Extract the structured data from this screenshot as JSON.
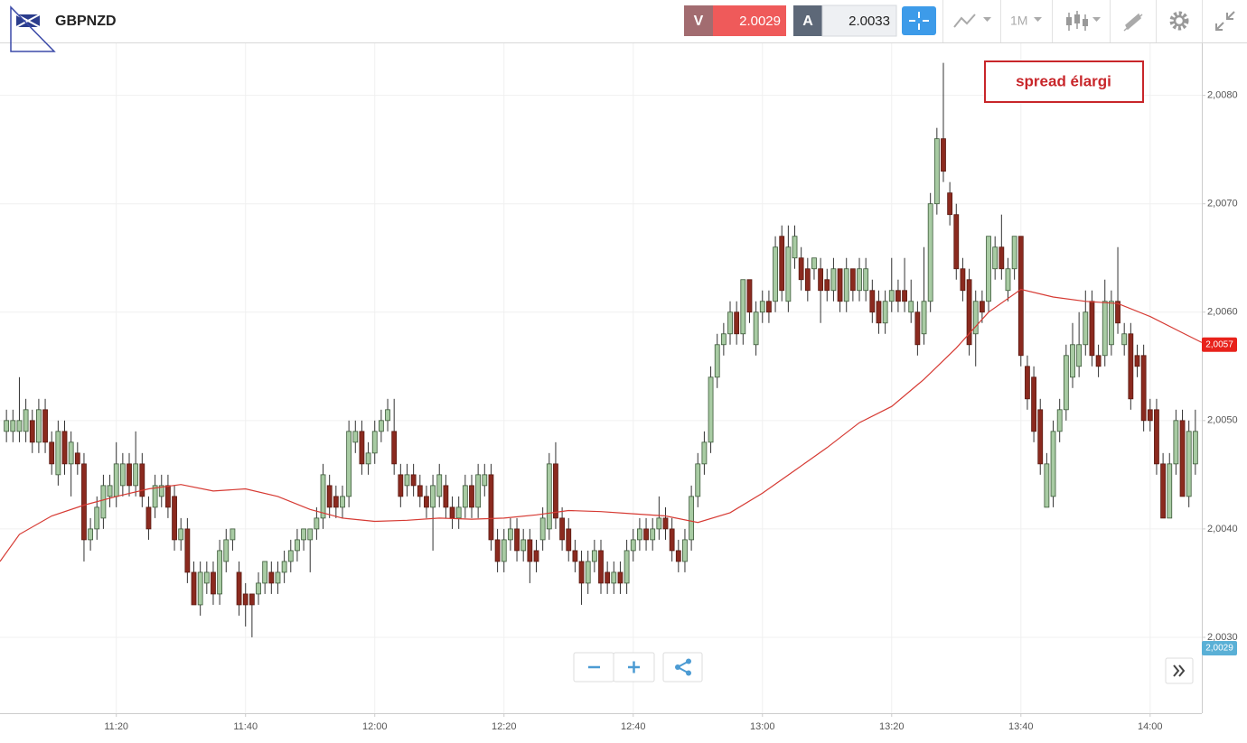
{
  "header": {
    "symbol": "GBPNZD",
    "sell_label": "V",
    "sell_price": "2.0029",
    "buy_label": "A",
    "buy_price": "2.0033",
    "timeframe": "1M"
  },
  "chart_data": {
    "type": "candlestick",
    "annotation": "spread élargi",
    "up_color": "#a8cba3",
    "down_color": "#8b2a1f",
    "grid": true,
    "xlim": [
      "11:02",
      "14:08"
    ],
    "xticks": [
      "11:20",
      "11:40",
      "12:00",
      "12:20",
      "12:40",
      "13:00",
      "13:20",
      "13:40",
      "14:00"
    ],
    "ylim": [
      2.0023,
      2.00848
    ],
    "yticks": [
      {
        "value": 2.003,
        "label": "2,0030"
      },
      {
        "value": 2.004,
        "label": "2,0040"
      },
      {
        "value": 2.005,
        "label": "2,0050"
      },
      {
        "value": 2.006,
        "label": "2,0060"
      },
      {
        "value": 2.007,
        "label": "2,0070"
      },
      {
        "value": 2.008,
        "label": "2,0080"
      }
    ],
    "price_labels": [
      {
        "value": 2.0057,
        "label": "2,0057",
        "color": "#e8221b"
      },
      {
        "value": 2.0029,
        "label": "2,0029",
        "color": "#5ab0d6"
      }
    ],
    "x": [
      "11:03",
      "11:04",
      "11:05",
      "11:06",
      "11:07",
      "11:08",
      "11:09",
      "11:10",
      "11:11",
      "11:12",
      "11:13",
      "11:14",
      "11:15",
      "11:16",
      "11:17",
      "11:18",
      "11:19",
      "11:20",
      "11:21",
      "11:22",
      "11:23",
      "11:24",
      "11:25",
      "11:26",
      "11:27",
      "11:28",
      "11:29",
      "11:30",
      "11:31",
      "11:32",
      "11:33",
      "11:34",
      "11:35",
      "11:36",
      "11:37",
      "11:38",
      "11:39",
      "11:40",
      "11:41",
      "11:42",
      "11:43",
      "11:44",
      "11:45",
      "11:46",
      "11:47",
      "11:48",
      "11:49",
      "11:50",
      "11:51",
      "11:52",
      "11:53",
      "11:54",
      "11:55",
      "11:56",
      "11:57",
      "11:58",
      "11:59",
      "12:00",
      "12:01",
      "12:02",
      "12:03",
      "12:04",
      "12:05",
      "12:06",
      "12:07",
      "12:08",
      "12:09",
      "12:10",
      "12:11",
      "12:12",
      "12:13",
      "12:14",
      "12:15",
      "12:16",
      "12:17",
      "12:18",
      "12:19",
      "12:20",
      "12:21",
      "12:22",
      "12:23",
      "12:24",
      "12:25",
      "12:26",
      "12:27",
      "12:28",
      "12:29",
      "12:30",
      "12:31",
      "12:32",
      "12:33",
      "12:34",
      "12:35",
      "12:36",
      "12:37",
      "12:38",
      "12:39",
      "12:40",
      "12:41",
      "12:42",
      "12:43",
      "12:44",
      "12:45",
      "12:46",
      "12:47",
      "12:48",
      "12:49",
      "12:50",
      "12:51",
      "12:52",
      "12:53",
      "12:54",
      "12:55",
      "12:56",
      "12:57",
      "12:58",
      "12:59",
      "13:00",
      "13:01",
      "13:02",
      "13:03",
      "13:04",
      "13:05",
      "13:06",
      "13:07",
      "13:08",
      "13:09",
      "13:10",
      "13:11",
      "13:12",
      "13:13",
      "13:14",
      "13:15",
      "13:16",
      "13:17",
      "13:18",
      "13:19",
      "13:20",
      "13:21",
      "13:22",
      "13:23",
      "13:24",
      "13:25",
      "13:26",
      "13:27",
      "13:28",
      "13:29",
      "13:30",
      "13:31",
      "13:32",
      "13:33",
      "13:34",
      "13:35",
      "13:36",
      "13:37",
      "13:38",
      "13:39",
      "13:40",
      "13:41",
      "13:42",
      "13:43",
      "13:44",
      "13:45",
      "13:46",
      "13:47",
      "13:48",
      "13:49",
      "13:50",
      "13:51",
      "13:52",
      "13:53",
      "13:54",
      "13:55",
      "13:56",
      "13:57",
      "13:58",
      "13:59",
      "14:00",
      "14:01",
      "14:02",
      "14:03",
      "14:04",
      "14:05",
      "14:06",
      "14:07"
    ],
    "open": [
      2.0049,
      2.0049,
      2.0049,
      2.0049,
      2.005,
      2.0048,
      2.0051,
      2.0048,
      2.0045,
      2.0049,
      2.0046,
      2.0047,
      2.0046,
      2.0039,
      2.004,
      2.0041,
      2.0043,
      2.0043,
      2.0044,
      2.0046,
      2.0044,
      2.0046,
      2.0042,
      2.0042,
      2.0043,
      2.0044,
      2.0043,
      2.0039,
      2.004,
      2.0036,
      2.0033,
      2.0035,
      2.0036,
      2.0034,
      2.0037,
      2.0039,
      2.0036,
      2.0034,
      2.0034,
      2.0034,
      2.0035,
      2.0036,
      2.0035,
      2.0036,
      2.0037,
      2.0038,
      2.0039,
      2.0039,
      2.004,
      2.0041,
      2.0044,
      2.0043,
      2.0042,
      2.0043,
      2.0048,
      2.0049,
      2.0046,
      2.0047,
      2.0049,
      2.005,
      2.0049,
      2.0045,
      2.0044,
      2.0045,
      2.0044,
      2.0043,
      2.0042,
      2.0043,
      2.0044,
      2.0042,
      2.0041,
      2.0042,
      2.0044,
      2.0042,
      2.0044,
      2.0045,
      2.0039,
      2.0037,
      2.0039,
      2.004,
      2.0038,
      2.0039,
      2.0038,
      2.0039,
      2.004,
      2.0046,
      2.0041,
      2.004,
      2.0038,
      2.0037,
      2.0035,
      2.0037,
      2.0038,
      2.0036,
      2.0035,
      2.0036,
      2.0035,
      2.0038,
      2.0039,
      2.004,
      2.0039,
      2.004,
      2.0041,
      2.004,
      2.0038,
      2.0037,
      2.0039,
      2.0043,
      2.0046,
      2.0048,
      2.0054,
      2.0057,
      2.0058,
      2.006,
      2.0058,
      2.0063,
      2.0057,
      2.006,
      2.0061,
      2.0061,
      2.0067,
      2.0061,
      2.0065,
      2.0065,
      2.0064,
      2.0064,
      2.0064,
      2.0063,
      2.0062,
      2.0064,
      2.0061,
      2.0064,
      2.0062,
      2.0062,
      2.0062,
      2.0061,
      2.0059,
      2.0061,
      2.0062,
      2.0062,
      2.006,
      2.006,
      2.0058,
      2.0061,
      2.007,
      2.0076,
      2.0071,
      2.0069,
      2.0064,
      2.0063,
      2.0058,
      2.0061,
      2.0061,
      2.0064,
      2.0066,
      2.0062,
      2.0064,
      2.0067,
      2.0055,
      2.0054,
      2.0051,
      2.0042,
      2.0043,
      2.0049,
      2.0051,
      2.0054,
      2.0055,
      2.0057,
      2.0061,
      2.0056,
      2.0056,
      2.0057,
      2.0061,
      2.0057,
      2.0058,
      2.0056,
      2.0056,
      2.0051,
      2.0051,
      2.0046,
      2.0041,
      2.0046,
      2.005,
      2.0043,
      2.0046
    ],
    "high": [
      2.0051,
      2.0051,
      2.0054,
      2.0052,
      2.0051,
      2.0052,
      2.0052,
      2.0049,
      2.005,
      2.005,
      2.0049,
      2.0048,
      2.0047,
      2.0041,
      2.0043,
      2.0045,
      2.0045,
      2.0048,
      2.0047,
      2.0047,
      2.0049,
      2.0047,
      2.0043,
      2.0045,
      2.0045,
      2.0045,
      2.0044,
      2.0041,
      2.0041,
      2.0037,
      2.0037,
      2.0037,
      2.0037,
      2.0039,
      2.004,
      2.004,
      2.0037,
      2.0035,
      2.0034,
      2.0036,
      2.0037,
      2.0037,
      2.0037,
      2.0038,
      2.0039,
      2.004,
      2.004,
      2.004,
      2.0042,
      2.0046,
      2.0045,
      2.0044,
      2.0044,
      2.005,
      2.005,
      2.005,
      2.0048,
      2.005,
      2.0051,
      2.0052,
      2.0052,
      2.0046,
      2.0046,
      2.0046,
      2.0045,
      2.0044,
      2.0045,
      2.0046,
      2.0045,
      2.0043,
      2.0043,
      2.0045,
      2.0045,
      2.0046,
      2.0046,
      2.0046,
      2.004,
      2.004,
      2.0041,
      2.0041,
      2.004,
      2.004,
      2.0039,
      2.0042,
      2.0047,
      2.0048,
      2.0042,
      2.0041,
      2.0039,
      2.0038,
      2.0038,
      2.0039,
      2.0039,
      2.0037,
      2.0037,
      2.0037,
      2.0039,
      2.004,
      2.0041,
      2.0041,
      2.0041,
      2.0043,
      2.0042,
      2.0041,
      2.0039,
      2.004,
      2.0044,
      2.0047,
      2.0049,
      2.0055,
      2.0058,
      2.0059,
      2.0061,
      2.0061,
      2.0063,
      2.0063,
      2.0061,
      2.0062,
      2.0062,
      2.0067,
      2.0068,
      2.0068,
      2.0068,
      2.0066,
      2.0065,
      2.0065,
      2.0065,
      2.0064,
      2.0065,
      2.0064,
      2.0065,
      2.0064,
      2.0065,
      2.0065,
      2.0063,
      2.0062,
      2.0062,
      2.0065,
      2.0063,
      2.0065,
      2.0063,
      2.0061,
      2.0066,
      2.0071,
      2.0077,
      2.0083,
      2.0072,
      2.007,
      2.0065,
      2.0064,
      2.0062,
      2.0062,
      2.0067,
      2.0067,
      2.0069,
      2.0065,
      2.0067,
      2.0067,
      2.0056,
      2.0055,
      2.0052,
      2.0047,
      2.005,
      2.0052,
      2.0057,
      2.0059,
      2.006,
      2.0062,
      2.0062,
      2.0057,
      2.0063,
      2.0062,
      2.0066,
      2.0059,
      2.0059,
      2.0057,
      2.0057,
      2.0052,
      2.0052,
      2.0047,
      2.0047,
      2.0051,
      2.0051,
      2.005,
      2.0051
    ],
    "low": [
      2.0048,
      2.0048,
      2.0048,
      2.0048,
      2.0047,
      2.0047,
      2.0047,
      2.0045,
      2.0044,
      2.0045,
      2.0043,
      2.0045,
      2.0037,
      2.0038,
      2.0039,
      2.004,
      2.0042,
      2.0042,
      2.0043,
      2.0043,
      2.0043,
      2.0042,
      2.0039,
      2.0041,
      2.0042,
      2.0041,
      2.0038,
      2.0038,
      2.0035,
      2.0033,
      2.0032,
      2.0034,
      2.0033,
      2.0033,
      2.0036,
      2.0038,
      2.0032,
      2.0031,
      2.003,
      2.0033,
      2.0034,
      2.0034,
      2.0034,
      2.0035,
      2.0036,
      2.0037,
      2.0038,
      2.0036,
      2.0039,
      2.004,
      2.0041,
      2.0041,
      2.0041,
      2.0042,
      2.0047,
      2.0045,
      2.0045,
      2.0046,
      2.0048,
      2.0049,
      2.0045,
      2.0042,
      2.0043,
      2.0043,
      2.0042,
      2.0041,
      2.0038,
      2.0042,
      2.0041,
      2.004,
      2.004,
      2.0041,
      2.0041,
      2.0041,
      2.0043,
      2.0038,
      2.0036,
      2.0036,
      2.0038,
      2.0037,
      2.0037,
      2.0035,
      2.0036,
      2.0038,
      2.0039,
      2.004,
      2.0038,
      2.0037,
      2.0036,
      2.0033,
      2.0034,
      2.0036,
      2.0034,
      2.0034,
      2.0034,
      2.0034,
      2.0034,
      2.0037,
      2.0038,
      2.0038,
      2.0038,
      2.0039,
      2.0039,
      2.0037,
      2.0036,
      2.0036,
      2.0038,
      2.0042,
      2.0045,
      2.0047,
      2.0053,
      2.0056,
      2.0057,
      2.0057,
      2.0057,
      2.0059,
      2.0056,
      2.0059,
      2.0059,
      2.006,
      2.0061,
      2.006,
      2.0064,
      2.0062,
      2.0061,
      2.0063,
      2.0059,
      2.0061,
      2.0061,
      2.006,
      2.006,
      2.0061,
      2.0061,
      2.0061,
      2.0059,
      2.0058,
      2.0058,
      2.006,
      2.006,
      2.006,
      2.0059,
      2.0056,
      2.0057,
      2.006,
      2.0069,
      2.0072,
      2.0068,
      2.0063,
      2.0061,
      2.0056,
      2.0055,
      2.0059,
      2.006,
      2.0063,
      2.0063,
      2.0061,
      2.0063,
      2.0055,
      2.0051,
      2.0048,
      2.0045,
      2.0042,
      2.0042,
      2.0048,
      2.005,
      2.0053,
      2.0054,
      2.0056,
      2.0055,
      2.0054,
      2.0055,
      2.0056,
      2.0058,
      2.0056,
      2.0051,
      2.0054,
      2.0049,
      2.0049,
      2.0045,
      2.0041,
      2.0041,
      2.0045,
      2.0043,
      2.0042,
      2.0045
    ],
    "close": [
      2.005,
      2.005,
      2.005,
      2.0051,
      2.0048,
      2.0051,
      2.0048,
      2.0046,
      2.0049,
      2.0046,
      2.0048,
      2.0046,
      2.0039,
      2.004,
      2.0042,
      2.0044,
      2.0044,
      2.0046,
      2.0046,
      2.0044,
      2.0046,
      2.0043,
      2.004,
      2.0044,
      2.0044,
      2.0042,
      2.0039,
      2.004,
      2.0036,
      2.0033,
      2.0036,
      2.0036,
      2.0034,
      2.0038,
      2.0039,
      2.004,
      2.0033,
      2.0033,
      2.0033,
      2.0035,
      2.0037,
      2.0035,
      2.0036,
      2.0037,
      2.0038,
      2.0039,
      2.004,
      2.004,
      2.0041,
      2.0045,
      2.0042,
      2.0042,
      2.0043,
      2.0049,
      2.0049,
      2.0046,
      2.0047,
      2.0049,
      2.005,
      2.0051,
      2.0046,
      2.0043,
      2.0045,
      2.0044,
      2.0043,
      2.0042,
      2.0044,
      2.0045,
      2.0042,
      2.0041,
      2.0042,
      2.0044,
      2.0042,
      2.0045,
      2.0045,
      2.0039,
      2.0037,
      2.0039,
      2.004,
      2.0038,
      2.0039,
      2.0037,
      2.0037,
      2.0041,
      2.0046,
      2.0041,
      2.0039,
      2.0038,
      2.0037,
      2.0035,
      2.0037,
      2.0038,
      2.0035,
      2.0035,
      2.0036,
      2.0035,
      2.0038,
      2.0039,
      2.004,
      2.0039,
      2.004,
      2.0041,
      2.004,
      2.0038,
      2.0037,
      2.0039,
      2.0043,
      2.0046,
      2.0048,
      2.0054,
      2.0057,
      2.0058,
      2.006,
      2.0058,
      2.0063,
      2.006,
      2.006,
      2.0061,
      2.006,
      2.0066,
      2.0062,
      2.0066,
      2.0067,
      2.0063,
      2.0062,
      2.0065,
      2.0062,
      2.0062,
      2.0064,
      2.0061,
      2.0064,
      2.0062,
      2.0064,
      2.0064,
      2.006,
      2.0059,
      2.0061,
      2.0062,
      2.0061,
      2.0061,
      2.0061,
      2.0057,
      2.0061,
      2.007,
      2.0076,
      2.0073,
      2.0069,
      2.0064,
      2.0062,
      2.0057,
      2.0061,
      2.006,
      2.0067,
      2.0066,
      2.0064,
      2.0064,
      2.0067,
      2.0056,
      2.0052,
      2.0049,
      2.0046,
      2.0046,
      2.0049,
      2.0051,
      2.0056,
      2.0057,
      2.0057,
      2.006,
      2.0056,
      2.0055,
      2.0061,
      2.0061,
      2.0059,
      2.0058,
      2.0052,
      2.0055,
      2.005,
      2.005,
      2.0046,
      2.0041,
      2.0046,
      2.005,
      2.0043,
      2.0049,
      2.0049
    ],
    "moving_average": {
      "color": "#d63a33",
      "x": [
        "11:02",
        "11:05",
        "11:10",
        "11:15",
        "11:20",
        "11:25",
        "11:30",
        "11:35",
        "11:40",
        "11:45",
        "11:50",
        "11:55",
        "12:00",
        "12:05",
        "12:10",
        "12:15",
        "12:20",
        "12:25",
        "12:30",
        "12:35",
        "12:40",
        "12:45",
        "12:50",
        "12:55",
        "13:00",
        "13:05",
        "13:10",
        "13:15",
        "13:20",
        "13:25",
        "13:30",
        "13:35",
        "13:40",
        "13:45",
        "13:50",
        "13:55",
        "14:00",
        "14:05",
        "14:08"
      ],
      "values": [
        2.0037,
        2.00395,
        2.00412,
        2.00422,
        2.0043,
        2.00437,
        2.00441,
        2.00435,
        2.00437,
        2.0043,
        2.00418,
        2.0041,
        2.00407,
        2.00408,
        2.0041,
        2.00409,
        2.0041,
        2.00413,
        2.00417,
        2.00416,
        2.00414,
        2.00412,
        2.00406,
        2.00415,
        2.00433,
        2.00454,
        2.00475,
        2.00498,
        2.00513,
        2.00538,
        2.00567,
        2.006,
        2.00621,
        2.00614,
        2.0061,
        2.00608,
        2.00596,
        2.00581,
        2.00572
      ]
    }
  }
}
